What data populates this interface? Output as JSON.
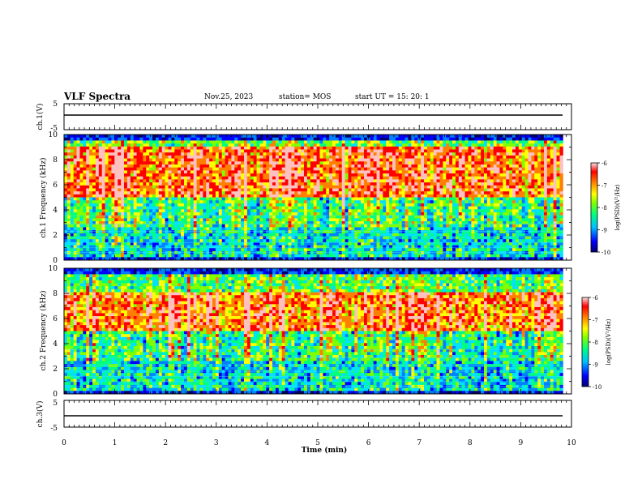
{
  "header": {
    "title": "VLF Spectra",
    "date": "Nov.25, 2023",
    "station": "station= MOS",
    "start": "start  UT =   15: 20: 1"
  },
  "colors": {
    "scale": [
      "#000070",
      "#0000ff",
      "#0080ff",
      "#00e0ff",
      "#00ff80",
      "#80ff00",
      "#ffff00",
      "#ff8000",
      "#ff0000",
      "#ffc0c0"
    ]
  },
  "chart_data": [
    {
      "type": "line",
      "panel": "ch1-voltage",
      "ylabel": "ch.1(V)",
      "ylim": [
        -5,
        5
      ],
      "yticks": [
        "5",
        "-5"
      ],
      "x": [
        0,
        9.83
      ],
      "values": [
        0,
        0
      ]
    },
    {
      "type": "heatmap",
      "panel": "ch1-spectrogram",
      "ylabel": "ch.1 Frequency (kHz)",
      "ylim": [
        0,
        10
      ],
      "yticks": [
        "0",
        "2",
        "4",
        "6",
        "8",
        "10"
      ],
      "x_range_min": [
        0,
        9.83
      ],
      "intense_band_khz": [
        5,
        9
      ],
      "colorbar": {
        "label": "log(PSD)(V²/Hz)",
        "range": [
          -10,
          -6
        ],
        "ticks": [
          "-6",
          "-7",
          "-8",
          "-9",
          "-10"
        ]
      }
    },
    {
      "type": "heatmap",
      "panel": "ch2-spectrogram",
      "ylabel": "ch.2 Frequency (kHz)",
      "ylim": [
        0,
        10
      ],
      "yticks": [
        "0",
        "2",
        "4",
        "6",
        "8",
        "10"
      ],
      "x_range_min": [
        0,
        9.83
      ],
      "intense_band_khz": [
        5,
        8
      ],
      "colorbar": {
        "label": "log(PSD)(V²/Hz)",
        "range": [
          -10,
          -6
        ],
        "ticks": [
          "-6",
          "-7",
          "-8",
          "-9",
          "-10"
        ]
      }
    },
    {
      "type": "line",
      "panel": "ch3-voltage",
      "ylabel": "ch.3(V)",
      "ylim": [
        -5,
        5
      ],
      "yticks": [
        "5",
        "-5"
      ],
      "x": [
        0,
        9.83
      ],
      "values": [
        0,
        0
      ]
    }
  ],
  "xaxis": {
    "label": "Time  (min)",
    "range": [
      0,
      10
    ],
    "ticks": [
      "0",
      "1",
      "2",
      "3",
      "4",
      "5",
      "6",
      "7",
      "8",
      "9",
      "10"
    ]
  }
}
